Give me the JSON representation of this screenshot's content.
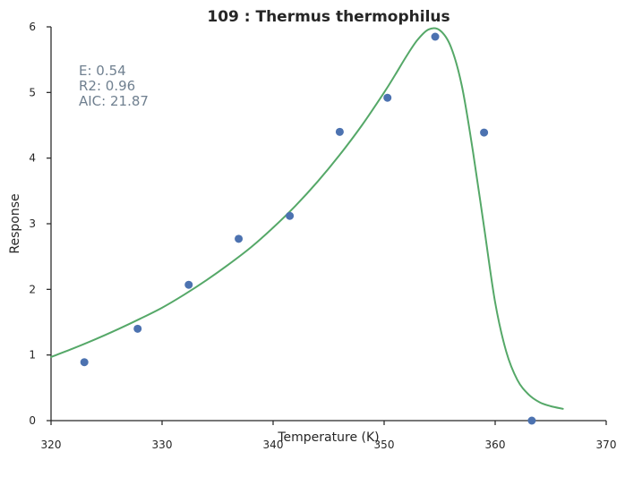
{
  "chart_data": {
    "type": "scatter",
    "title": "109 : Thermus thermophilus",
    "xlabel": "Temperature (K)",
    "ylabel": "Response",
    "xlim": [
      320,
      370
    ],
    "ylim": [
      0,
      6
    ],
    "xticks": [
      320,
      330,
      340,
      350,
      360,
      370
    ],
    "yticks": [
      0,
      1,
      2,
      3,
      4,
      5,
      6
    ],
    "grid": false,
    "annotations": [
      "E:  0.54",
      "R2:  0.96",
      "AIC: 21.87"
    ],
    "colors": {
      "points": "#4c72b0",
      "fit": "#55a868",
      "annotation": "#708090",
      "axis": "#262626"
    },
    "series": [
      {
        "kind": "scatter",
        "x": [
          323.0,
          327.8,
          332.4,
          336.9,
          341.5,
          346.0,
          350.3,
          354.6,
          359.0,
          363.3
        ],
        "y": [
          0.89,
          1.4,
          2.07,
          2.77,
          3.12,
          4.4,
          4.92,
          5.85,
          4.39,
          0.0
        ]
      },
      {
        "kind": "line",
        "x": [
          320,
          322,
          324,
          326,
          328,
          330,
          332,
          334,
          336,
          338,
          340,
          342,
          344,
          346,
          348,
          350,
          351,
          352,
          353,
          354,
          355,
          356,
          357,
          358,
          359,
          360,
          361,
          362,
          363,
          364,
          365,
          366.1
        ],
        "y": [
          0.97,
          1.1,
          1.24,
          1.39,
          1.55,
          1.72,
          1.92,
          2.14,
          2.38,
          2.64,
          2.94,
          3.27,
          3.64,
          4.05,
          4.5,
          5.0,
          5.27,
          5.55,
          5.8,
          5.96,
          5.95,
          5.7,
          5.1,
          4.1,
          2.95,
          1.8,
          1.05,
          0.62,
          0.4,
          0.28,
          0.22,
          0.18
        ]
      }
    ]
  }
}
